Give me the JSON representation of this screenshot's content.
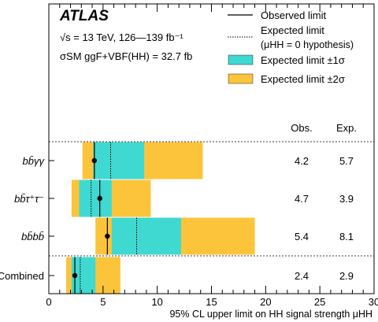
{
  "chart_data": {
    "type": "limit-bar",
    "experiment": "ATLAS",
    "energy_text": "√s = 13 TeV, 126—139 fb⁻¹",
    "xs_text": "σSM ggF+VBF(HH) = 32.7 fb",
    "xlabel": "95% CL upper limit on HH signal strength μHH",
    "xlim": [
      0,
      30
    ],
    "xticks": [
      0,
      5,
      10,
      15,
      20,
      25,
      30
    ],
    "column_headers": [
      "Obs.",
      "Exp."
    ],
    "legend": [
      {
        "label": "Observed limit",
        "style": "solid-line"
      },
      {
        "label": "Expected limit",
        "label2": "(μHH = 0 hypothesis)",
        "style": "dotted-line"
      },
      {
        "label": "Expected limit ±1σ",
        "style": "fill",
        "color": "#3fd9d1"
      },
      {
        "label": "Expected limit ±2σ",
        "style": "fill",
        "color": "#fcc43a"
      }
    ],
    "colors": {
      "band1": "#3fd9d1",
      "band2": "#fcc43a",
      "marker": "#000000"
    },
    "channels": [
      {
        "name": "bb̄γγ",
        "obs": 4.2,
        "exp": 5.7,
        "obs_label": "4.2",
        "exp_label": "5.7",
        "band1": [
          4.1,
          8.8
        ],
        "band2": [
          3.1,
          14.2
        ]
      },
      {
        "name": "bb̄τ⁺τ⁻",
        "obs": 4.7,
        "exp": 3.9,
        "obs_label": "4.7",
        "exp_label": "3.9",
        "band1": [
          2.8,
          5.8
        ],
        "band2": [
          2.1,
          9.4
        ]
      },
      {
        "name": "bb̄bb̄",
        "obs": 5.4,
        "exp": 8.1,
        "obs_label": "5.4",
        "exp_label": "8.1",
        "band1": [
          5.8,
          12.2
        ],
        "band2": [
          4.3,
          19.0
        ]
      },
      {
        "name": "Combined",
        "obs": 2.4,
        "exp": 2.9,
        "obs_label": "2.4",
        "exp_label": "2.9",
        "band1": [
          2.1,
          4.3
        ],
        "band2": [
          1.6,
          6.6
        ]
      }
    ]
  }
}
